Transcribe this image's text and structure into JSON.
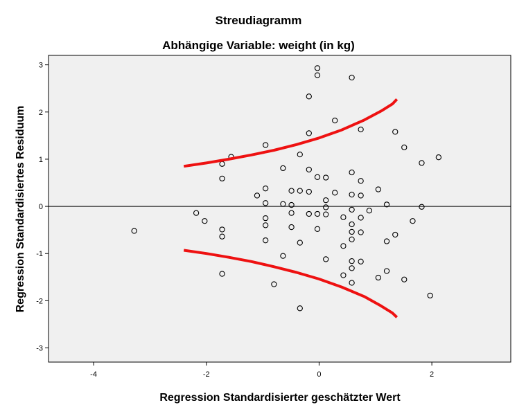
{
  "chart_data": {
    "type": "scatter",
    "title": "Streudiagramm",
    "subtitle": "Abhängige Variable: weight (in kg)",
    "xlabel": "Regression Standardisierter geschätzter Wert",
    "ylabel": "Regression Standardisiertes Residuum",
    "xlim": [
      -4.8,
      3.4
    ],
    "ylim": [
      -3.3,
      3.2
    ],
    "x_ticks": [
      -4,
      -2,
      0,
      2
    ],
    "x_tick_labels": [
      "-4",
      "-2",
      "0",
      "2"
    ],
    "y_ticks": [
      -3,
      -2,
      -1,
      0,
      1,
      2,
      3
    ],
    "y_tick_labels": [
      "-3",
      "-2",
      "-1",
      "0",
      "1",
      "2",
      "3"
    ],
    "grid": false,
    "reference_line_y": 0,
    "background_color": "#f0f0f0",
    "marker_color": "#000000",
    "curve_color": "#ee1111",
    "points": [
      {
        "x": -3.28,
        "y": -0.52
      },
      {
        "x": -2.18,
        "y": -0.14
      },
      {
        "x": -2.03,
        "y": -0.31
      },
      {
        "x": -1.72,
        "y": 0.9
      },
      {
        "x": -1.72,
        "y": 0.59
      },
      {
        "x": -1.72,
        "y": -0.49
      },
      {
        "x": -1.72,
        "y": -0.64
      },
      {
        "x": -1.72,
        "y": -1.43
      },
      {
        "x": -1.56,
        "y": 1.05
      },
      {
        "x": -1.1,
        "y": 0.23
      },
      {
        "x": -0.95,
        "y": 1.3
      },
      {
        "x": -0.95,
        "y": 0.38
      },
      {
        "x": -0.95,
        "y": 0.07
      },
      {
        "x": -0.95,
        "y": -0.25
      },
      {
        "x": -0.95,
        "y": -0.4
      },
      {
        "x": -0.95,
        "y": -0.72
      },
      {
        "x": -0.8,
        "y": -1.65
      },
      {
        "x": -0.64,
        "y": 0.81
      },
      {
        "x": -0.64,
        "y": 0.05
      },
      {
        "x": -0.64,
        "y": -1.05
      },
      {
        "x": -0.49,
        "y": 0.33
      },
      {
        "x": -0.49,
        "y": 0.03
      },
      {
        "x": -0.49,
        "y": -0.14
      },
      {
        "x": -0.49,
        "y": -0.44
      },
      {
        "x": -0.34,
        "y": 1.1
      },
      {
        "x": -0.34,
        "y": 0.33
      },
      {
        "x": -0.34,
        "y": -0.77
      },
      {
        "x": -0.34,
        "y": -2.16
      },
      {
        "x": -0.18,
        "y": 2.33
      },
      {
        "x": -0.18,
        "y": 1.55
      },
      {
        "x": -0.18,
        "y": 0.78
      },
      {
        "x": -0.18,
        "y": 0.31
      },
      {
        "x": -0.18,
        "y": -0.16
      },
      {
        "x": -0.03,
        "y": 2.93
      },
      {
        "x": -0.03,
        "y": 2.78
      },
      {
        "x": -0.03,
        "y": 0.62
      },
      {
        "x": -0.03,
        "y": -0.16
      },
      {
        "x": -0.03,
        "y": -0.48
      },
      {
        "x": 0.12,
        "y": 0.61
      },
      {
        "x": 0.12,
        "y": 0.13
      },
      {
        "x": 0.12,
        "y": -0.02
      },
      {
        "x": 0.12,
        "y": -0.17
      },
      {
        "x": 0.12,
        "y": -1.12
      },
      {
        "x": 0.28,
        "y": 1.82
      },
      {
        "x": 0.28,
        "y": 0.29
      },
      {
        "x": 0.43,
        "y": -0.23
      },
      {
        "x": 0.43,
        "y": -0.84
      },
      {
        "x": 0.43,
        "y": -1.46
      },
      {
        "x": 0.58,
        "y": 2.73
      },
      {
        "x": 0.58,
        "y": 0.72
      },
      {
        "x": 0.58,
        "y": 0.25
      },
      {
        "x": 0.58,
        "y": -0.07
      },
      {
        "x": 0.58,
        "y": -0.38
      },
      {
        "x": 0.58,
        "y": -0.54
      },
      {
        "x": 0.58,
        "y": -0.7
      },
      {
        "x": 0.58,
        "y": -1.16
      },
      {
        "x": 0.58,
        "y": -1.31
      },
      {
        "x": 0.58,
        "y": -1.62
      },
      {
        "x": 0.74,
        "y": 1.63
      },
      {
        "x": 0.74,
        "y": 0.54
      },
      {
        "x": 0.74,
        "y": 0.23
      },
      {
        "x": 0.74,
        "y": -0.24
      },
      {
        "x": 0.74,
        "y": -0.55
      },
      {
        "x": 0.74,
        "y": -1.17
      },
      {
        "x": 0.89,
        "y": -0.09
      },
      {
        "x": 1.05,
        "y": 0.36
      },
      {
        "x": 1.05,
        "y": -1.51
      },
      {
        "x": 1.2,
        "y": 0.04
      },
      {
        "x": 1.2,
        "y": -0.74
      },
      {
        "x": 1.2,
        "y": -1.37
      },
      {
        "x": 1.35,
        "y": 1.58
      },
      {
        "x": 1.35,
        "y": -0.6
      },
      {
        "x": 1.51,
        "y": 1.25
      },
      {
        "x": 1.51,
        "y": -1.55
      },
      {
        "x": 1.66,
        "y": -0.31
      },
      {
        "x": 1.82,
        "y": 0.92
      },
      {
        "x": 1.82,
        "y": -0.01
      },
      {
        "x": 1.97,
        "y": -1.89
      },
      {
        "x": 2.12,
        "y": 1.04
      }
    ],
    "upper_curve": [
      {
        "x": -2.4,
        "y": 0.85
      },
      {
        "x": -2.0,
        "y": 0.92
      },
      {
        "x": -1.6,
        "y": 1.0
      },
      {
        "x": -1.2,
        "y": 1.09
      },
      {
        "x": -0.8,
        "y": 1.19
      },
      {
        "x": -0.4,
        "y": 1.31
      },
      {
        "x": 0.0,
        "y": 1.45
      },
      {
        "x": 0.4,
        "y": 1.62
      },
      {
        "x": 0.8,
        "y": 1.83
      },
      {
        "x": 1.1,
        "y": 2.02
      },
      {
        "x": 1.3,
        "y": 2.17
      },
      {
        "x": 1.38,
        "y": 2.27
      }
    ],
    "lower_curve": [
      {
        "x": -2.4,
        "y": -0.93
      },
      {
        "x": -2.0,
        "y": -1.0
      },
      {
        "x": -1.6,
        "y": -1.08
      },
      {
        "x": -1.2,
        "y": -1.17
      },
      {
        "x": -0.8,
        "y": -1.28
      },
      {
        "x": -0.4,
        "y": -1.4
      },
      {
        "x": 0.0,
        "y": -1.54
      },
      {
        "x": 0.4,
        "y": -1.71
      },
      {
        "x": 0.8,
        "y": -1.91
      },
      {
        "x": 1.1,
        "y": -2.11
      },
      {
        "x": 1.3,
        "y": -2.26
      },
      {
        "x": 1.38,
        "y": -2.35
      }
    ]
  }
}
